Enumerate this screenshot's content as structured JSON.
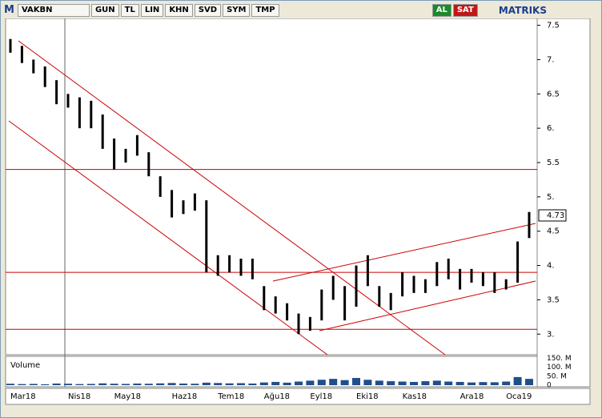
{
  "toolbar": {
    "logo": "M",
    "symbol": "VAKBN",
    "buttons": [
      "GUN",
      "TL",
      "LIN",
      "KHN",
      "SVD",
      "SYM",
      "TMP"
    ],
    "buy": "AL",
    "sell": "SAT",
    "brand": "MATRIKS"
  },
  "chart_data": [
    {
      "type": "ohlc",
      "categories": [
        "Mar18",
        null,
        null,
        null,
        null,
        "Nis18",
        null,
        null,
        null,
        "May18",
        null,
        null,
        null,
        null,
        "Haz18",
        null,
        null,
        null,
        "Tem18",
        null,
        null,
        null,
        "Ağu18",
        null,
        null,
        null,
        "Eyl18",
        null,
        null,
        null,
        "Eki18",
        null,
        null,
        null,
        "Kas18",
        null,
        null,
        null,
        null,
        "Ara18",
        null,
        null,
        null,
        "Oca19",
        null,
        null
      ],
      "high": [
        7.3,
        7.2,
        7.0,
        6.9,
        6.7,
        6.5,
        6.45,
        6.4,
        6.2,
        5.85,
        5.7,
        5.9,
        5.65,
        5.3,
        5.1,
        4.95,
        5.05,
        4.95,
        4.15,
        4.15,
        4.1,
        4.1,
        3.7,
        3.55,
        3.45,
        3.3,
        3.25,
        3.65,
        3.85,
        3.7,
        4.0,
        4.15,
        3.7,
        3.6,
        3.9,
        3.85,
        3.8,
        4.05,
        4.1,
        3.95,
        3.95,
        3.9,
        3.9,
        3.8,
        4.35,
        4.78
      ],
      "low": [
        7.1,
        6.95,
        6.8,
        6.6,
        6.35,
        6.3,
        6.0,
        6.0,
        5.7,
        5.4,
        5.5,
        5.6,
        5.3,
        5.0,
        4.7,
        4.75,
        4.8,
        3.9,
        3.85,
        3.9,
        3.85,
        3.8,
        3.35,
        3.3,
        3.2,
        3.0,
        3.05,
        3.2,
        3.5,
        3.2,
        3.4,
        3.7,
        3.4,
        3.35,
        3.55,
        3.6,
        3.6,
        3.7,
        3.8,
        3.65,
        3.75,
        3.7,
        3.6,
        3.65,
        3.75,
        4.4
      ],
      "color": "#000000",
      "ylim": [
        2.7,
        7.6
      ],
      "yticks": [
        {
          "value": 3,
          "label": "3."
        },
        3.5,
        {
          "value": 4,
          "label": "4."
        },
        4.5,
        {
          "value": 5,
          "label": "5."
        },
        5.5,
        {
          "value": 6,
          "label": "6."
        },
        6.5,
        {
          "value": 7,
          "label": "7."
        },
        7.5
      ],
      "last_price": 4.73,
      "levels": [
        5.4,
        3.9,
        3.07
      ],
      "level_color": "#cc0000"
    },
    {
      "type": "volume",
      "title": "Volume",
      "values": [
        8,
        6,
        7,
        5,
        9,
        8,
        6,
        7,
        10,
        8,
        7,
        9,
        8,
        10,
        12,
        9,
        8,
        14,
        12,
        10,
        11,
        9,
        15,
        18,
        14,
        20,
        25,
        30,
        35,
        28,
        40,
        30,
        25,
        22,
        20,
        18,
        22,
        25,
        20,
        18,
        15,
        17,
        16,
        20,
        45,
        35
      ],
      "color": "#1f4e8c",
      "ylim": [
        0,
        160
      ],
      "yticks": [
        {
          "value": 0,
          "label": "0"
        },
        {
          "value": 50,
          "label": "50. M"
        },
        {
          "value": 100,
          "label": "100. M"
        },
        {
          "value": 150,
          "label": "150. M"
        }
      ]
    }
  ]
}
